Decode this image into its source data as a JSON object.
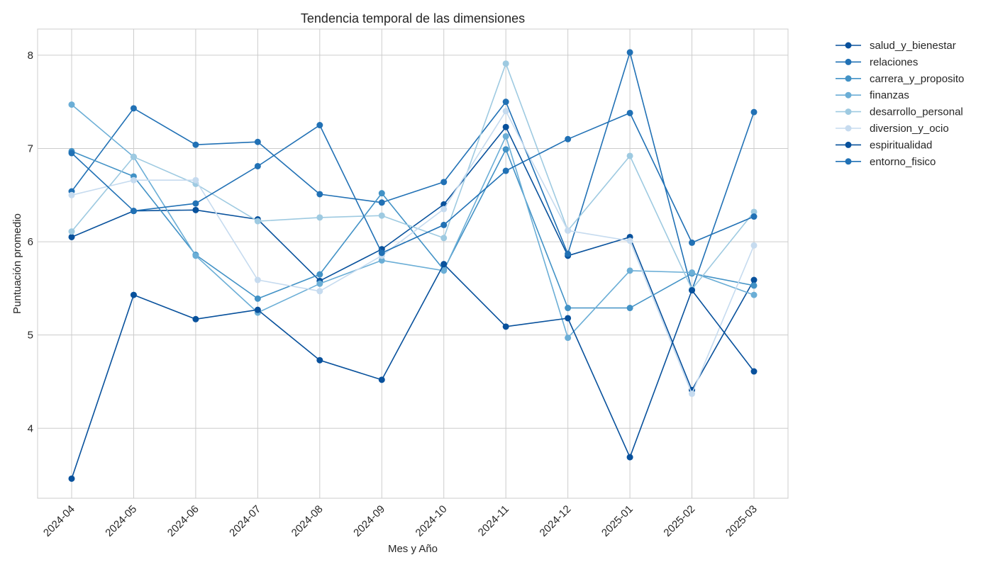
{
  "chart_data": {
    "type": "line",
    "title": "Tendencia temporal de las dimensiones",
    "xlabel": "Mes y Año",
    "ylabel": "Puntuación promedio",
    "categories": [
      "2024-04",
      "2024-05",
      "2024-06",
      "2024-07",
      "2024-08",
      "2024-09",
      "2024-10",
      "2024-11",
      "2024-12",
      "2025-01",
      "2025-02",
      "2025-03"
    ],
    "yticks": [
      4,
      5,
      6,
      7,
      8
    ],
    "ylim": [
      3.25,
      8.28
    ],
    "grid": true,
    "legend_position": "outside-top-right",
    "series": [
      {
        "name": "salud_y_bienestar",
        "color": "#08519c",
        "values": [
          6.05,
          6.33,
          6.34,
          6.24,
          5.58,
          5.92,
          6.4,
          7.23,
          5.85,
          6.05,
          4.41,
          5.59
        ]
      },
      {
        "name": "relaciones",
        "color": "#2171b5",
        "values": [
          6.54,
          7.43,
          7.04,
          7.07,
          6.51,
          6.42,
          6.64,
          7.5,
          5.87,
          8.03,
          5.48,
          7.39
        ]
      },
      {
        "name": "carrera_y_proposito",
        "color": "#4292c6",
        "values": [
          6.97,
          6.7,
          5.86,
          5.39,
          5.65,
          6.52,
          5.7,
          6.99,
          5.29,
          5.29,
          5.66,
          5.53
        ]
      },
      {
        "name": "finanzas",
        "color": "#6baed6",
        "values": [
          7.47,
          6.91,
          5.85,
          5.24,
          5.55,
          5.8,
          5.69,
          7.13,
          4.97,
          5.69,
          5.67,
          5.43
        ]
      },
      {
        "name": "desarrollo_personal",
        "color": "#9ecae1",
        "values": [
          6.11,
          6.91,
          6.62,
          6.22,
          6.26,
          6.28,
          6.04,
          7.91,
          6.12,
          6.92,
          5.49,
          6.32
        ]
      },
      {
        "name": "diversion_y_ocio",
        "color": "#c6dbef",
        "values": [
          6.5,
          6.66,
          6.66,
          5.59,
          5.47,
          5.85,
          6.35,
          7.4,
          6.12,
          6.01,
          4.37,
          5.96
        ]
      },
      {
        "name": "espiritualidad",
        "color": "#08519c",
        "values": [
          3.46,
          5.43,
          5.17,
          5.27,
          4.73,
          4.52,
          5.76,
          5.09,
          5.18,
          3.69,
          5.48,
          4.61
        ]
      },
      {
        "name": "entorno_fisico",
        "color": "#2171b5",
        "values": [
          6.95,
          6.33,
          6.41,
          6.81,
          7.25,
          5.88,
          6.18,
          6.76,
          7.1,
          7.38,
          5.99,
          6.27
        ]
      }
    ]
  }
}
